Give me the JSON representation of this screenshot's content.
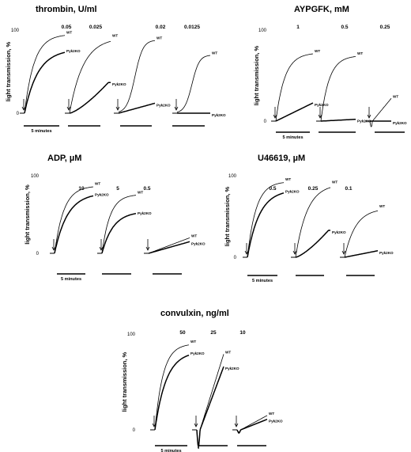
{
  "chart_data": [
    {
      "type": "line",
      "title": "thrombin, U/ml",
      "ylabel": "light transmission, %",
      "yticks": [
        "100",
        "0"
      ],
      "scale_bar_label": "5 minutes",
      "concentrations": [
        "0.05",
        "0.025",
        "0.02",
        "0.0125"
      ],
      "series_names": [
        "WT",
        "Pyk2KO"
      ],
      "final_values": {
        "WT": [
          95,
          91,
          88,
          70
        ],
        "Pyk2KO": [
          77,
          37,
          12,
          0
        ]
      }
    },
    {
      "type": "line",
      "title": "AYPGFK, mM",
      "ylabel": "light transmission, %",
      "yticks": [
        "100",
        "0"
      ],
      "scale_bar_label": "5 minutes",
      "concentrations": [
        "1",
        "0.5",
        "0.25"
      ],
      "series_names": [
        "WT",
        "Pyk2KO"
      ],
      "final_values": {
        "WT": [
          75,
          72,
          25
        ],
        "Pyk2KO": [
          20,
          2,
          0
        ]
      }
    },
    {
      "type": "line",
      "title": "ADP, µM",
      "ylabel": "light transmission, %",
      "yticks": [
        "100",
        "0"
      ],
      "scale_bar_label": "5 minutes",
      "concentrations": [
        "10",
        "5",
        "0.5"
      ],
      "series_names": [
        "WT",
        "Pyk2KO"
      ],
      "final_values": {
        "WT": [
          87,
          76,
          20
        ],
        "Pyk2KO": [
          78,
          54,
          15
        ]
      }
    },
    {
      "type": "line",
      "title": "U46619, µM",
      "ylabel": "light transmission, %",
      "yticks": [
        "100",
        "0"
      ],
      "scale_bar_label": "5 minutes",
      "concentrations": [
        "0.5",
        "0.25",
        "0.1"
      ],
      "series_names": [
        "WT",
        "Pyk2KO"
      ],
      "final_values": {
        "WT": [
          93,
          90,
          60
        ],
        "Pyk2KO": [
          83,
          33,
          8
        ]
      }
    },
    {
      "type": "line",
      "title": "convulxin, ng/ml",
      "ylabel": "light transmission, %",
      "yticks": [
        "100",
        "0"
      ],
      "scale_bar_label": "5 minutes",
      "concentrations": [
        "50",
        "25",
        "10"
      ],
      "series_names": [
        "WT",
        "Pyk2KO"
      ],
      "final_values": {
        "WT": [
          90,
          79,
          15
        ],
        "Pyk2KO": [
          82,
          66,
          11
        ]
      }
    }
  ]
}
